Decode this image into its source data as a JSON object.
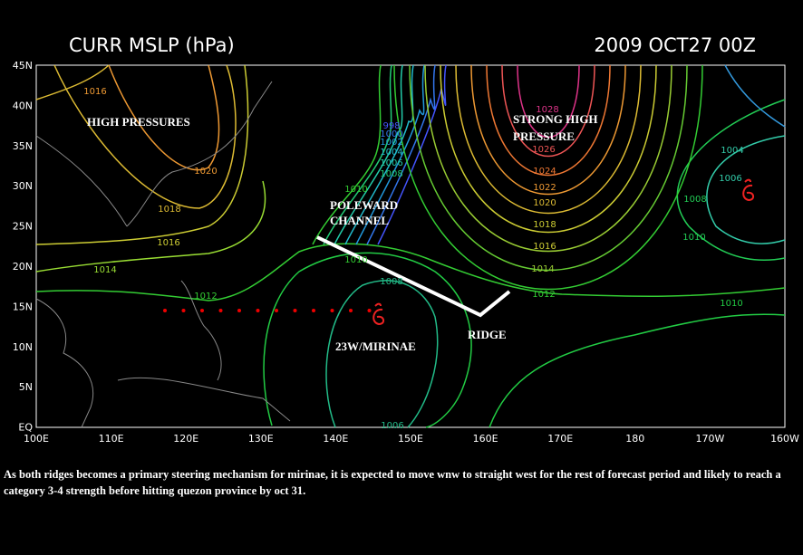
{
  "header": {
    "title": "CURR MSLP (hPa)",
    "date": "2009 OCT27 00Z"
  },
  "map": {
    "lat_labels": [
      "45N",
      "40N",
      "35N",
      "30N",
      "25N",
      "20N",
      "15N",
      "10N",
      "5N",
      "EQ"
    ],
    "lon_labels": [
      "100E",
      "110E",
      "120E",
      "130E",
      "140E",
      "150E",
      "160E",
      "170E",
      "180",
      "170W",
      "160W"
    ],
    "contour_labels": [
      "1016",
      "1020",
      "1018",
      "1016",
      "1014",
      "1012",
      "1010",
      "1008",
      "1006",
      "1004",
      "1002",
      "1000",
      "998",
      "1028",
      "1026",
      "1024",
      "1022",
      "1020",
      "1018",
      "1016",
      "1014",
      "1012",
      "1010",
      "1008",
      "1010",
      "1010",
      "1008",
      "1006",
      "1004",
      "1006"
    ],
    "annotations": {
      "high_pressures": "HIGH PRESSURES",
      "strong_high": [
        "STRONG HIGH",
        "PRESSURE"
      ],
      "poleward": [
        "POLEWARD",
        "CHANNEL"
      ],
      "storm": "23W/MIRINAE",
      "ridge": "RIDGE"
    }
  },
  "caption": "As both ridges becomes a primary steering mechanism for mirinae, it is expected to move wnw to straight west for the rest of forecast period and likely to reach a category 3-4 strength before hitting quezon province by oct 31."
}
